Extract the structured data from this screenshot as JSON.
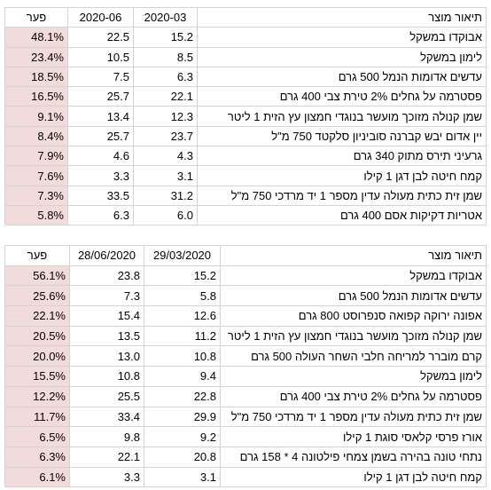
{
  "tables": [
    {
      "header": [
        "תיאור מוצר",
        "2020-03",
        "2020-06",
        "פער"
      ],
      "rows": [
        [
          "אבוקדו במשקל",
          "15.2",
          "22.5",
          "48.1%"
        ],
        [
          "לימון במשקל",
          "8.5",
          "10.5",
          "23.4%"
        ],
        [
          "עדשים אדומות הנמל 500 גרם",
          "6.3",
          "7.5",
          "18.5%"
        ],
        [
          "פסטרמה על גחלים 2% טירת צבי 400 גרם",
          "22.1",
          "25.7",
          "16.5%"
        ],
        [
          "שמן קנולה מזוכך מועשר בנוגדי חמצון עץ הזית 1 ליטר",
          "12.3",
          "13.4",
          "9.1%"
        ],
        [
          "יין אדום יבש קברנה סוביניון סלקטד 750 מ\"ל",
          "23.7",
          "25.7",
          "8.4%"
        ],
        [
          "גרעיני תירס מתוק 340 גרם",
          "4.3",
          "4.6",
          "7.9%"
        ],
        [
          "קמח חיטה לבן דגן 1 קילו",
          "3.1",
          "3.3",
          "7.6%"
        ],
        [
          "שמן זית כתית מעולה עדין מספר 1 יד מרדכי 750 מ\"ל",
          "31.2",
          "33.5",
          "7.3%"
        ],
        [
          "אטריות דקיקות אסם 400 גרם",
          "6.0",
          "6.3",
          "5.8%"
        ]
      ]
    },
    {
      "header": [
        "תיאור מוצר",
        "29/03/2020",
        "28/06/2020",
        "פער"
      ],
      "rows": [
        [
          "אבוקדו במשקל",
          "15.2",
          "23.8",
          "56.1%"
        ],
        [
          "עדשים אדומות הנמל 500 גרם",
          "5.8",
          "7.3",
          "25.6%"
        ],
        [
          "אפונה ירוקה קפואה סנפרוסט 800 גרם",
          "12.6",
          "15.4",
          "22.1%"
        ],
        [
          "שמן קנולה מזוכך מועשר בנוגדי חמצון עץ הזית 1 ליטר",
          "11.2",
          "13.5",
          "20.5%"
        ],
        [
          "קרם מוברר למריחה חלבי השחר העולה 500 גרם",
          "10.8",
          "13.0",
          "20.0%"
        ],
        [
          "לימון במשקל",
          "9.4",
          "10.8",
          "15.5%"
        ],
        [
          "פסטרמה על גחלים 2% טירת צבי 400 גרם",
          "22.8",
          "25.5",
          "12.2%"
        ],
        [
          "שמן זית כתית מעולה עדין מספר 1 יד מרדכי 750 מ\"ל",
          "29.9",
          "33.4",
          "11.7%"
        ],
        [
          "אורז פרסי קלאסי סוגת 1 קילו",
          "9.2",
          "9.8",
          "6.5%"
        ],
        [
          "נתחי טונה בהירה בשמן צמחי פילטונה 4 * 158 גרם",
          "20.8",
          "22.1",
          "6.3%"
        ],
        [
          "קמח חיטה לבן דגן 1 קילו",
          "3.1",
          "3.3",
          "6.1%"
        ]
      ]
    }
  ]
}
